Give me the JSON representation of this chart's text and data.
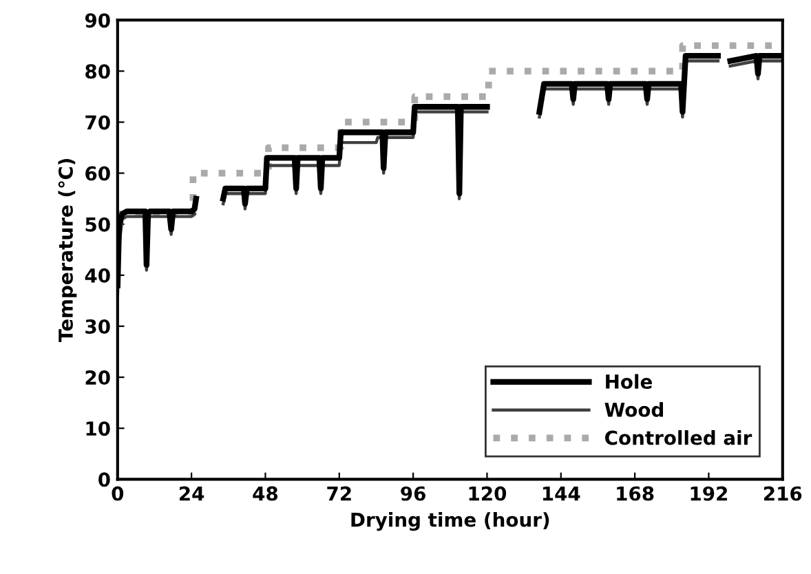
{
  "chart_data": {
    "type": "line",
    "xlabel": "Drying time (hour)",
    "ylabel": "Temperature (℃)",
    "xlim": [
      0,
      216
    ],
    "xticks": [
      0,
      24,
      48,
      72,
      96,
      120,
      144,
      168,
      192,
      216
    ],
    "ylim": [
      0,
      90
    ],
    "yticks": [
      0,
      10,
      20,
      30,
      40,
      50,
      60,
      70,
      80,
      90
    ],
    "grid": false,
    "legend": "bottom right",
    "line_style": "solid",
    "marker": "none",
    "series": [
      {
        "name": "Hole",
        "color": "#000000",
        "x": [
          0,
          0.5,
          1.5,
          3,
          9,
          9.4,
          9.9,
          10.5,
          16.8,
          17.4,
          18,
          24,
          25,
          25.5,
          30,
          34.3,
          35,
          41,
          41.4,
          42,
          48,
          48.5,
          57.5,
          58,
          58.5,
          65.5,
          66,
          66.5,
          72,
          72.5,
          86,
          86.4,
          87,
          96,
          96.5,
          110.5,
          111,
          111.5,
          120,
          128,
          137,
          138.5,
          147.5,
          148,
          148.5,
          159,
          159.5,
          160,
          171.5,
          172,
          172.5,
          183,
          183.5,
          184.5,
          195,
          197,
          199,
          207.5,
          208,
          208.5,
          216
        ],
        "values": [
          38,
          50,
          52,
          52.5,
          52.5,
          42,
          52,
          52.5,
          52.5,
          49,
          52.5,
          52.5,
          53,
          55,
          null,
          55,
          57,
          57,
          54,
          57,
          57,
          63,
          63,
          57,
          63,
          63,
          57,
          63,
          63,
          68,
          68,
          61,
          68,
          68,
          73,
          73,
          56,
          73,
          73,
          null,
          72,
          77.5,
          77.5,
          74.5,
          77.5,
          77.5,
          74.5,
          77.5,
          77.5,
          74.5,
          77.5,
          77.5,
          72,
          83,
          83,
          null,
          82,
          83,
          79.5,
          83,
          83
        ]
      },
      {
        "name": "Wood",
        "color": "#404040",
        "x": [
          0,
          0.5,
          1.5,
          3,
          9,
          9.4,
          9.9,
          10.5,
          16.8,
          17.4,
          18,
          24,
          25,
          30,
          34.3,
          35,
          41,
          41.4,
          42,
          48,
          48.5,
          57.5,
          58,
          58.5,
          65.5,
          66,
          66.5,
          72,
          72.5,
          84,
          84.5,
          86,
          86.4,
          87,
          96,
          96.5,
          110.5,
          111,
          111.5,
          120,
          128,
          137,
          138.5,
          147.5,
          148,
          148.5,
          159,
          159.5,
          160,
          171.5,
          172,
          172.5,
          183,
          183.5,
          184.5,
          195,
          197,
          199,
          207.5,
          208,
          208.5,
          216
        ],
        "values": [
          36,
          46,
          51,
          51.5,
          51.5,
          41,
          51,
          51.5,
          51.5,
          48,
          51.5,
          51.5,
          52,
          null,
          54,
          56,
          56,
          53,
          56,
          56,
          61.5,
          61.5,
          56,
          61.5,
          61.5,
          56,
          61.5,
          61.5,
          66,
          66,
          67,
          67,
          60,
          67,
          67,
          72,
          72,
          55,
          72,
          72,
          null,
          71,
          76.5,
          76.5,
          73.5,
          76.5,
          76.5,
          73.5,
          76.5,
          76.5,
          73.5,
          76.5,
          76.5,
          71,
          82,
          82,
          null,
          81,
          82,
          78.5,
          82,
          82
        ]
      },
      {
        "name": "Controlled air",
        "color": "#aaaaaa",
        "line_style": "dotted",
        "x": [
          0,
          24.5,
          24.5,
          49,
          49,
          72.5,
          72.5,
          96.5,
          96.5,
          120.5,
          120.5,
          183.5,
          183.5,
          216
        ],
        "values": [
          52,
          52,
          60,
          60,
          65,
          65,
          70,
          70,
          75,
          75,
          80,
          80,
          85,
          85
        ]
      }
    ]
  }
}
